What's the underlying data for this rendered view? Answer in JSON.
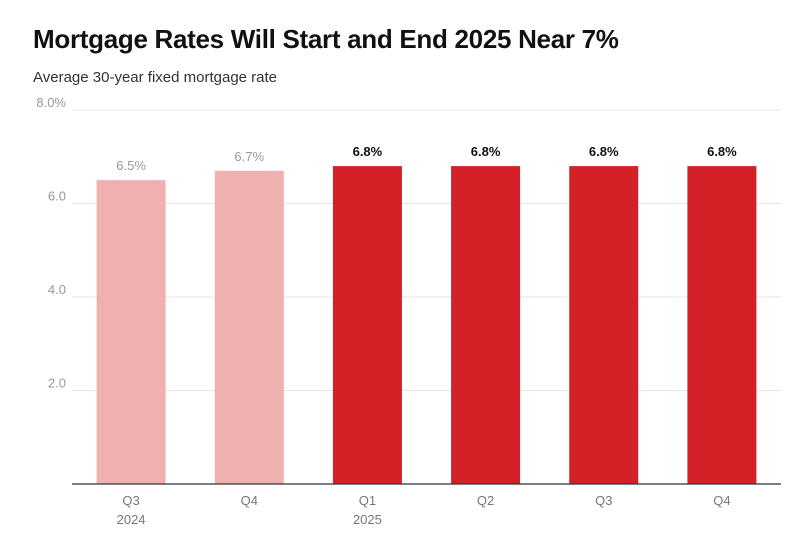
{
  "title": "Mortgage Rates Will Start and End 2025 Near 7%",
  "subtitle": "Average 30-year fixed mortgage rate",
  "colors": {
    "actual": "#f0b0b2",
    "forecast": "#d42027"
  },
  "chart_data": {
    "type": "bar",
    "title": "Mortgage Rates Will Start and End 2025 Near 7%",
    "subtitle": "Average 30-year fixed mortgage rate",
    "categories": [
      {
        "quarter": "Q3",
        "year": "2024"
      },
      {
        "quarter": "Q4",
        "year": ""
      },
      {
        "quarter": "Q1",
        "year": "2025"
      },
      {
        "quarter": "Q2",
        "year": ""
      },
      {
        "quarter": "Q3",
        "year": ""
      },
      {
        "quarter": "Q4",
        "year": ""
      }
    ],
    "values": [
      6.5,
      6.7,
      6.8,
      6.8,
      6.8,
      6.8
    ],
    "value_labels": [
      "6.5%",
      "6.7%",
      "6.8%",
      "6.8%",
      "6.8%",
      "6.8%"
    ],
    "forecast": [
      false,
      false,
      true,
      true,
      true,
      true
    ],
    "ylim": [
      0,
      8
    ],
    "yticks": [
      {
        "value": 2,
        "label": "2.0"
      },
      {
        "value": 4,
        "label": "4.0"
      },
      {
        "value": 6,
        "label": "6.0"
      },
      {
        "value": 8,
        "label": "8.0%"
      }
    ],
    "grid": true
  }
}
